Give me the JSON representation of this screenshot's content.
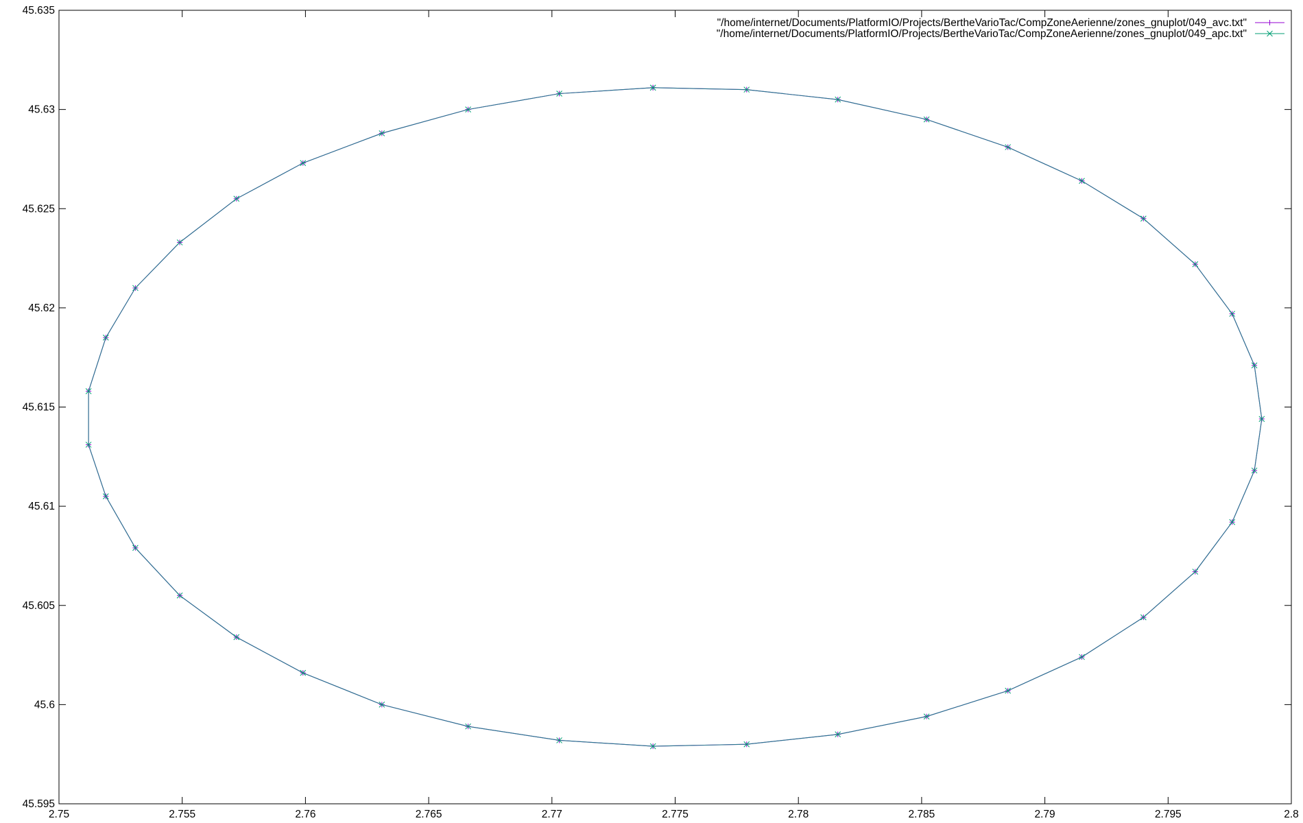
{
  "chart_data": {
    "type": "line",
    "xlim": [
      2.75,
      2.8
    ],
    "ylim": [
      45.595,
      45.635
    ],
    "x_ticks": [
      "2.75",
      "2.755",
      "2.76",
      "2.765",
      "2.77",
      "2.775",
      "2.78",
      "2.785",
      "2.79",
      "2.795",
      "2.8"
    ],
    "y_ticks": [
      "45.595",
      "45.6",
      "45.605",
      "45.61",
      "45.615",
      "45.62",
      "45.625",
      "45.63",
      "45.635"
    ],
    "grid": false,
    "legend_position": "top-right",
    "series": [
      {
        "name": "\"/home/internet/Documents/PlatformIO/Projects/BertheVarioTac/CompZoneAerienne/zones_gnuplot/049_avc.txt\"",
        "color": "#9400d3",
        "marker": "plus",
        "points": [
          [
            2.7741,
            45.6311
          ],
          [
            2.7779,
            45.631
          ],
          [
            2.7816,
            45.6305
          ],
          [
            2.7852,
            45.6295
          ],
          [
            2.7885,
            45.6281
          ],
          [
            2.7915,
            45.6264
          ],
          [
            2.794,
            45.6245
          ],
          [
            2.7961,
            45.6222
          ],
          [
            2.7976,
            45.6197
          ],
          [
            2.7985,
            45.6171
          ],
          [
            2.7988,
            45.6144
          ],
          [
            2.7985,
            45.6118
          ],
          [
            2.7976,
            45.6092
          ],
          [
            2.7961,
            45.6067
          ],
          [
            2.794,
            45.6044
          ],
          [
            2.7915,
            45.6024
          ],
          [
            2.7885,
            45.6007
          ],
          [
            2.7852,
            45.5994
          ],
          [
            2.7816,
            45.5985
          ],
          [
            2.7779,
            45.598
          ],
          [
            2.7741,
            45.5979
          ],
          [
            2.7703,
            45.5982
          ],
          [
            2.7666,
            45.5989
          ],
          [
            2.7631,
            45.6
          ],
          [
            2.7599,
            45.6016
          ],
          [
            2.7572,
            45.6034
          ],
          [
            2.7549,
            45.6055
          ],
          [
            2.7531,
            45.6079
          ],
          [
            2.7519,
            45.6105
          ],
          [
            2.7512,
            45.6131
          ],
          [
            2.7512,
            45.6158
          ],
          [
            2.7519,
            45.6185
          ],
          [
            2.7531,
            45.621
          ],
          [
            2.7549,
            45.6233
          ],
          [
            2.7572,
            45.6255
          ],
          [
            2.7599,
            45.6273
          ],
          [
            2.7631,
            45.6288
          ],
          [
            2.7666,
            45.63
          ],
          [
            2.7703,
            45.6308
          ],
          [
            2.7741,
            45.6311
          ]
        ]
      },
      {
        "name": "\"/home/internet/Documents/PlatformIO/Projects/BertheVarioTac/CompZoneAerienne/zones_gnuplot/049_apc.txt\"",
        "color": "#009e73",
        "marker": "cross",
        "points": [
          [
            2.7741,
            45.6311
          ],
          [
            2.7779,
            45.631
          ],
          [
            2.7816,
            45.6305
          ],
          [
            2.7852,
            45.6295
          ],
          [
            2.7885,
            45.6281
          ],
          [
            2.7915,
            45.6264
          ],
          [
            2.794,
            45.6245
          ],
          [
            2.7961,
            45.6222
          ],
          [
            2.7976,
            45.6197
          ],
          [
            2.7985,
            45.6171
          ],
          [
            2.7988,
            45.6144
          ],
          [
            2.7985,
            45.6118
          ],
          [
            2.7976,
            45.6092
          ],
          [
            2.7961,
            45.6067
          ],
          [
            2.794,
            45.6044
          ],
          [
            2.7915,
            45.6024
          ],
          [
            2.7885,
            45.6007
          ],
          [
            2.7852,
            45.5994
          ],
          [
            2.7816,
            45.5985
          ],
          [
            2.7779,
            45.598
          ],
          [
            2.7741,
            45.5979
          ],
          [
            2.7703,
            45.5982
          ],
          [
            2.7666,
            45.5989
          ],
          [
            2.7631,
            45.6
          ],
          [
            2.7599,
            45.6016
          ],
          [
            2.7572,
            45.6034
          ],
          [
            2.7549,
            45.6055
          ],
          [
            2.7531,
            45.6079
          ],
          [
            2.7519,
            45.6105
          ],
          [
            2.7512,
            45.6131
          ],
          [
            2.7512,
            45.6158
          ],
          [
            2.7519,
            45.6185
          ],
          [
            2.7531,
            45.621
          ],
          [
            2.7549,
            45.6233
          ],
          [
            2.7572,
            45.6255
          ],
          [
            2.7599,
            45.6273
          ],
          [
            2.7631,
            45.6288
          ],
          [
            2.7666,
            45.63
          ],
          [
            2.7703,
            45.6308
          ],
          [
            2.7741,
            45.6311
          ]
        ]
      }
    ]
  }
}
